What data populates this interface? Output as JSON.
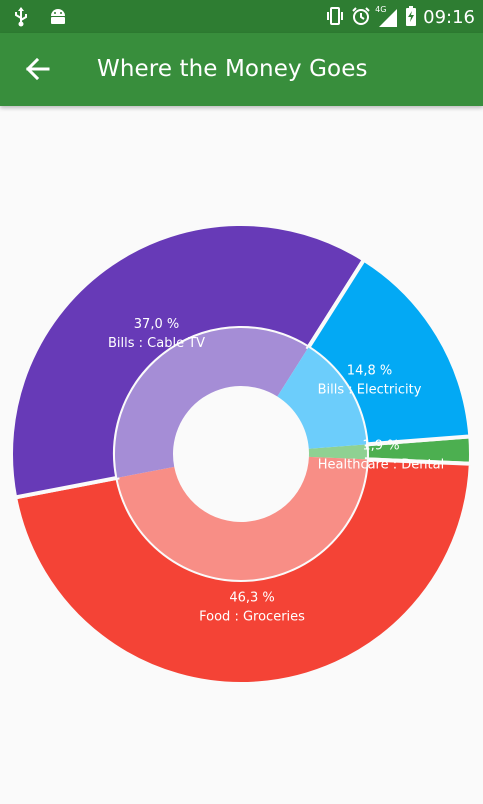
{
  "status_bar": {
    "time": "09:16",
    "network": "4G",
    "icons": [
      "usb-icon",
      "android-debug-icon",
      "vibrate-icon",
      "alarm-icon",
      "signal-icon",
      "battery-charging-icon"
    ]
  },
  "app_bar": {
    "title": "Where the Money Goes",
    "back_icon": "arrow-back-icon"
  },
  "colors": {
    "status_bar": "#2e7d32",
    "app_bar": "#388e3c",
    "background": "#fafafa"
  },
  "chart_data": {
    "type": "pie",
    "style": "donut with inner ring",
    "slices": [
      {
        "label": "Bills : Cable TV",
        "value_label": "37,0 %",
        "value": 37.0,
        "color": "#673ab7",
        "inner_color": "#a58dd6"
      },
      {
        "label": "Bills : Electricity",
        "value_label": "14,8 %",
        "value": 14.8,
        "color": "#03a9f4",
        "inner_color": "#6ccdfb"
      },
      {
        "label": "Healthcare : Dental",
        "value_label": "1,9 %",
        "value": 1.9,
        "color": "#4caf50",
        "inner_color": "#8fd192"
      },
      {
        "label": "Food : Groceries",
        "value_label": "46,3 %",
        "value": 46.3,
        "color": "#f44336",
        "inner_color": "#f88e86"
      }
    ]
  }
}
